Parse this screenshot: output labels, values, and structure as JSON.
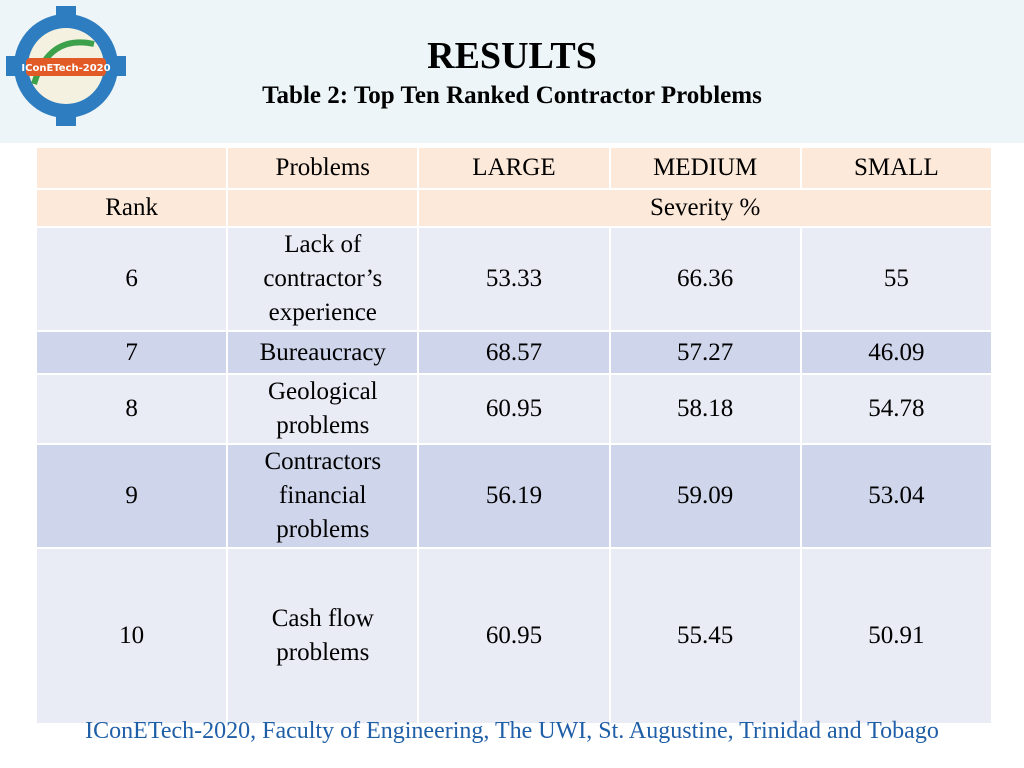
{
  "header": {
    "title": "RESULTS",
    "subtitle": "Table 2: Top Ten Ranked Contractor Problems",
    "logo_text": "IConETech-2020"
  },
  "table": {
    "columns": [
      "Problems",
      "LARGE",
      "MEDIUM",
      "SMALL"
    ],
    "rank_label": "Rank",
    "unit_label": "Severity %",
    "rows": [
      {
        "rank": 6,
        "problem": "Lack of contractor’s experience",
        "large": 53.33,
        "medium": 66.36,
        "small": 55
      },
      {
        "rank": 7,
        "problem": "Bureaucracy",
        "large": 68.57,
        "medium": 57.27,
        "small": 46.09
      },
      {
        "rank": 8,
        "problem": "Geological problems",
        "large": 60.95,
        "medium": 58.18,
        "small": 54.78
      },
      {
        "rank": 9,
        "problem": "Contractors financial problems",
        "large": 56.19,
        "medium": 59.09,
        "small": 53.04
      },
      {
        "rank": 10,
        "problem": "Cash flow problems",
        "large": 60.95,
        "medium": 55.45,
        "small": 50.91
      }
    ]
  },
  "footer": {
    "text": "IConETech-2020, Faculty of Engineering, The UWI, St. Augustine, Trinidad and Tobago"
  }
}
